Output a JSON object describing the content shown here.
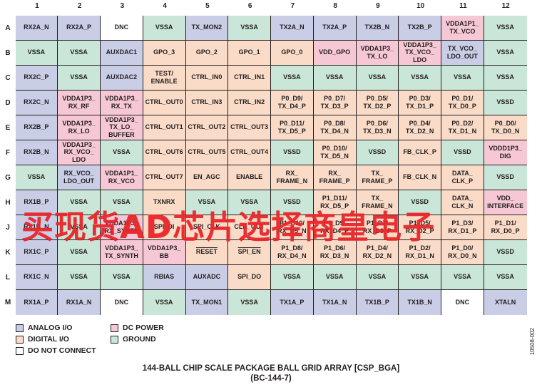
{
  "columns": [
    "1",
    "2",
    "3",
    "4",
    "5",
    "6",
    "7",
    "8",
    "9",
    "10",
    "11",
    "12"
  ],
  "rows": [
    {
      "label": "A",
      "cells": [
        {
          "text": "RX2A_N",
          "type": "analog"
        },
        {
          "text": "RX2A_P",
          "type": "analog"
        },
        {
          "text": "DNC",
          "type": "dnc"
        },
        {
          "text": "VSSA",
          "type": "ground"
        },
        {
          "text": "TX_MON2",
          "type": "analog"
        },
        {
          "text": "VSSA",
          "type": "ground"
        },
        {
          "text": "TX2A_N",
          "type": "analog"
        },
        {
          "text": "TX2A_P",
          "type": "analog"
        },
        {
          "text": "TX2B_N",
          "type": "analog"
        },
        {
          "text": "TX2B_P",
          "type": "analog"
        },
        {
          "text": "VDDA1P1_\nTX_VCO",
          "type": "power"
        },
        {
          "text": "VSSA",
          "type": "ground"
        }
      ]
    },
    {
      "label": "B",
      "cells": [
        {
          "text": "VSSA",
          "type": "ground"
        },
        {
          "text": "VSSA",
          "type": "ground"
        },
        {
          "text": "AUXDAC1",
          "type": "analog"
        },
        {
          "text": "GPO_3",
          "type": "digital"
        },
        {
          "text": "GPO_2",
          "type": "digital"
        },
        {
          "text": "GPO_1",
          "type": "digital"
        },
        {
          "text": "GPO_0",
          "type": "digital"
        },
        {
          "text": "VDD_GPO",
          "type": "power"
        },
        {
          "text": "VDDA1P3_\nTX_LO",
          "type": "power"
        },
        {
          "text": "VDDA1P3_\nTX_VCO_\nLDO",
          "type": "power"
        },
        {
          "text": "TX_VCO_\nLDO_OUT",
          "type": "analog"
        },
        {
          "text": "VSSA",
          "type": "ground"
        }
      ]
    },
    {
      "label": "C",
      "cells": [
        {
          "text": "RX2C_P",
          "type": "analog"
        },
        {
          "text": "VSSA",
          "type": "ground"
        },
        {
          "text": "AUXDAC2",
          "type": "analog"
        },
        {
          "text": "TEST/\nENABLE",
          "type": "digital"
        },
        {
          "text": "CTRL_IN0",
          "type": "digital"
        },
        {
          "text": "CTRL_IN1",
          "type": "digital"
        },
        {
          "text": "VSSA",
          "type": "ground"
        },
        {
          "text": "VSSA",
          "type": "ground"
        },
        {
          "text": "VSSA",
          "type": "ground"
        },
        {
          "text": "VSSA",
          "type": "ground"
        },
        {
          "text": "VSSA",
          "type": "ground"
        },
        {
          "text": "VSSA",
          "type": "ground"
        }
      ]
    },
    {
      "label": "D",
      "cells": [
        {
          "text": "RX2C_N",
          "type": "analog"
        },
        {
          "text": "VDDA1P3_\nRX_RF",
          "type": "power"
        },
        {
          "text": "VDDA1P3_\nRX_TX",
          "type": "power"
        },
        {
          "text": "CTRL_OUT0",
          "type": "digital"
        },
        {
          "text": "CTRL_IN3",
          "type": "digital"
        },
        {
          "text": "CTRL_IN2",
          "type": "digital"
        },
        {
          "text": "P0_D9/\nTX_D4_P",
          "type": "digital"
        },
        {
          "text": "P0_D7/\nTX_D3_P",
          "type": "digital"
        },
        {
          "text": "P0_D5/\nTX_D2_P",
          "type": "digital"
        },
        {
          "text": "P0_D3/\nTX_D1_P",
          "type": "digital"
        },
        {
          "text": "P0_D1/\nTX_D0_P",
          "type": "digital"
        },
        {
          "text": "VSSD",
          "type": "ground"
        }
      ]
    },
    {
      "label": "E",
      "cells": [
        {
          "text": "RX2B_P",
          "type": "analog"
        },
        {
          "text": "VDDA1P3_\nRX_LO",
          "type": "power"
        },
        {
          "text": "VDDA1P3_\nTX_LO_\nBUFFER",
          "type": "power"
        },
        {
          "text": "CTRL_OUT1",
          "type": "digital"
        },
        {
          "text": "CTRL_OUT2",
          "type": "digital"
        },
        {
          "text": "CTRL_OUT3",
          "type": "digital"
        },
        {
          "text": "P0_D11/\nTX_D5_P",
          "type": "digital"
        },
        {
          "text": "P0_D8/\nTX_D4_N",
          "type": "digital"
        },
        {
          "text": "P0_D6/\nTX_D3_N",
          "type": "digital"
        },
        {
          "text": "P0_D4/\nTX_D2_N",
          "type": "digital"
        },
        {
          "text": "P0_D2/\nTX_D1_N",
          "type": "digital"
        },
        {
          "text": "P0_D0/\nTX_D0_N",
          "type": "digital"
        }
      ]
    },
    {
      "label": "F",
      "cells": [
        {
          "text": "RX2B_N",
          "type": "analog"
        },
        {
          "text": "VDDA1P3_\nRX_VCO_\nLDO",
          "type": "power"
        },
        {
          "text": "VSSA",
          "type": "ground"
        },
        {
          "text": "CTRL_OUT6",
          "type": "digital"
        },
        {
          "text": "CTRL_OUT5",
          "type": "digital"
        },
        {
          "text": "CTRL_OUT4",
          "type": "digital"
        },
        {
          "text": "VSSD",
          "type": "ground"
        },
        {
          "text": "P0_D10/\nTX_D5_N",
          "type": "digital"
        },
        {
          "text": "VSSD",
          "type": "ground"
        },
        {
          "text": "FB_CLK_P",
          "type": "digital"
        },
        {
          "text": "VSSD",
          "type": "ground"
        },
        {
          "text": "VDDD1P3_\nDIG",
          "type": "power"
        }
      ]
    },
    {
      "label": "G",
      "cells": [
        {
          "text": "VSSA",
          "type": "ground"
        },
        {
          "text": "RX_VCO_\nLDO_OUT",
          "type": "analog"
        },
        {
          "text": "VDDA1P1_\nRX_VCO",
          "type": "power"
        },
        {
          "text": "CTRL_OUT7",
          "type": "digital"
        },
        {
          "text": "EN_AGC",
          "type": "digital"
        },
        {
          "text": "ENABLE",
          "type": "digital"
        },
        {
          "text": "RX_\nFRAME_N",
          "type": "digital"
        },
        {
          "text": "RX_\nFRAME_P",
          "type": "digital"
        },
        {
          "text": "TX_\nFRAME_P",
          "type": "digital"
        },
        {
          "text": "FB_CLK_N",
          "type": "digital"
        },
        {
          "text": "DATA_\nCLK_P",
          "type": "digital"
        },
        {
          "text": "VSSD",
          "type": "ground"
        }
      ]
    },
    {
      "label": "H",
      "cells": [
        {
          "text": "RX1B_P",
          "type": "analog"
        },
        {
          "text": "VSSA",
          "type": "ground"
        },
        {
          "text": "VSSA",
          "type": "ground"
        },
        {
          "text": "TXNRX",
          "type": "digital"
        },
        {
          "text": "VSSA",
          "type": "ground"
        },
        {
          "text": "VSSA",
          "type": "ground"
        },
        {
          "text": "VSSD",
          "type": "ground"
        },
        {
          "text": "P1_D11/\nRX_D5_P",
          "type": "digital"
        },
        {
          "text": "TX_\nFRAME_N",
          "type": "digital"
        },
        {
          "text": "VSSD",
          "type": "ground"
        },
        {
          "text": "DATA_\nCLK_N",
          "type": "digital"
        },
        {
          "text": "VDD_\nINTERFACE",
          "type": "power"
        }
      ]
    },
    {
      "label": "J",
      "cells": [
        {
          "text": "RX1B_N",
          "type": "analog"
        },
        {
          "text": "VSSA",
          "type": "ground"
        },
        {
          "text": "VDDA1P3_\nRX_SYNTH",
          "type": "power"
        },
        {
          "text": "SPI_DI",
          "type": "digital"
        },
        {
          "text": "SPI_CLK",
          "type": "digital"
        },
        {
          "text": "CLK_OUT",
          "type": "digital"
        },
        {
          "text": "P1_D10/\nRX_D5_N",
          "type": "digital"
        },
        {
          "text": "P1_D9/\nRX_D4_P",
          "type": "digital"
        },
        {
          "text": "P1_D7/\nRX_D3_P",
          "type": "digital"
        },
        {
          "text": "P1_D5/\nRX_D2_P",
          "type": "digital"
        },
        {
          "text": "P1_D3/\nRX_D1_P",
          "type": "digital"
        },
        {
          "text": "P1_D1/\nRX_D0_P",
          "type": "digital"
        }
      ]
    },
    {
      "label": "K",
      "cells": [
        {
          "text": "RX1C_P",
          "type": "analog"
        },
        {
          "text": "VSSA",
          "type": "ground"
        },
        {
          "text": "VDDA1P3_\nTX_SYNTH",
          "type": "power"
        },
        {
          "text": "VDDA1P3_\nBB",
          "type": "power"
        },
        {
          "text": "RESET",
          "type": "digital",
          "overline": true
        },
        {
          "text": "SPI_EN",
          "type": "digital",
          "overline": true
        },
        {
          "text": "P1_D8/\nRX_D4_N",
          "type": "digital"
        },
        {
          "text": "P1_D6/\nRX_D3_N",
          "type": "digital"
        },
        {
          "text": "P1_D4/\nRX_D2_N",
          "type": "digital"
        },
        {
          "text": "P1_D2/\nRX_D1_N",
          "type": "digital"
        },
        {
          "text": "P1_D0/\nRX_D0_N",
          "type": "digital"
        },
        {
          "text": "VSSD",
          "type": "ground"
        }
      ]
    },
    {
      "label": "L",
      "cells": [
        {
          "text": "RX1C_N",
          "type": "analog"
        },
        {
          "text": "VSSA",
          "type": "ground"
        },
        {
          "text": "VSSA",
          "type": "ground"
        },
        {
          "text": "RBIAS",
          "type": "analog"
        },
        {
          "text": "AUXADC",
          "type": "analog"
        },
        {
          "text": "SPI_DO",
          "type": "digital"
        },
        {
          "text": "VSSA",
          "type": "ground"
        },
        {
          "text": "VSSA",
          "type": "ground"
        },
        {
          "text": "VSSA",
          "type": "ground"
        },
        {
          "text": "VSSA",
          "type": "ground"
        },
        {
          "text": "VSSA",
          "type": "ground"
        },
        {
          "text": "VSSA",
          "type": "ground"
        }
      ]
    },
    {
      "label": "M",
      "cells": [
        {
          "text": "RX1A_P",
          "type": "analog"
        },
        {
          "text": "RX1A_N",
          "type": "analog"
        },
        {
          "text": "DNC",
          "type": "dnc"
        },
        {
          "text": "VSSA",
          "type": "ground"
        },
        {
          "text": "TX_MON1",
          "type": "analog"
        },
        {
          "text": "VSSA",
          "type": "ground"
        },
        {
          "text": "TX1A_P",
          "type": "analog"
        },
        {
          "text": "TX1A_N",
          "type": "analog"
        },
        {
          "text": "TX1B_P",
          "type": "analog"
        },
        {
          "text": "TX1B_N",
          "type": "analog"
        },
        {
          "text": "DNC",
          "type": "dnc"
        },
        {
          "text": "XTALN",
          "type": "analog"
        }
      ]
    }
  ],
  "legend": [
    {
      "label": "ANALOG I/O",
      "type": "analog"
    },
    {
      "label": "DIGITAL I/O",
      "type": "digital"
    },
    {
      "label": "DO NOT CONNECT",
      "type": "dnc"
    },
    {
      "label": "DC POWER",
      "type": "power"
    },
    {
      "label": "GROUND",
      "type": "ground"
    }
  ],
  "colors": {
    "analog": "#c9cde6",
    "digital": "#f9dbc8",
    "dnc": "#ffffff",
    "power": "#f6c8d6",
    "ground": "#c9e6d8",
    "watermark": "#e9262a"
  },
  "title_line1": "144-BALL CHIP SCALE PACKAGE BALL GRID ARRAY [CSP_BGA]",
  "title_line2": "(BC-144-7)",
  "figure_id": "10508-002",
  "watermark": "买现货AD芯片选择商皇电子"
}
